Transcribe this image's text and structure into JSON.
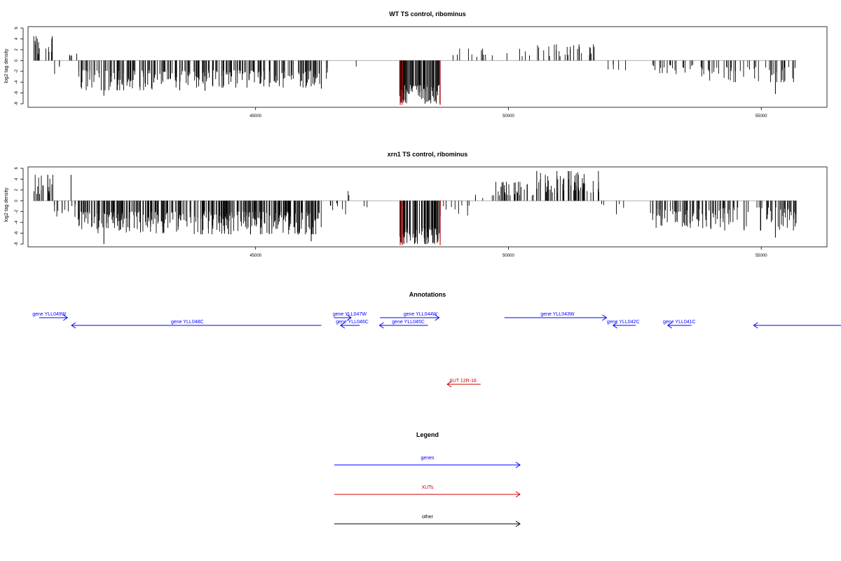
{
  "colors": {
    "genes": "#0000ff",
    "xuts": "#cc0000",
    "other": "#000000",
    "bars": "#000000",
    "highlight": "#cc0000",
    "baseline": "#999999"
  },
  "chart_data": [
    {
      "type": "bar",
      "title": "WT TS control, ribominus",
      "ylabel": "log2 tag density",
      "xlim": [
        40500,
        56300
      ],
      "ylim": [
        -8.5,
        6
      ],
      "yticks": [
        6,
        4,
        2,
        0,
        -2,
        -4,
        -6,
        -8
      ],
      "xticks": [
        45000,
        50000,
        55000
      ],
      "xtick_labels": [
        "45000",
        "50000",
        "55000"
      ],
      "highlight_color": "xuts",
      "segments": [
        {
          "from": 40600,
          "to": 41000,
          "sign": 1,
          "max": 4.5,
          "min": 1.0,
          "density": 12
        },
        {
          "from": 41000,
          "to": 41200,
          "sign": -1,
          "max": 2.5,
          "min": 0.5,
          "density": 5
        },
        {
          "from": 41200,
          "to": 41480,
          "sign": 1,
          "max": 3.5,
          "min": 0.8,
          "density": 6
        },
        {
          "from": 41500,
          "to": 43400,
          "sign": -1,
          "max": 5.5,
          "min": 1.8,
          "density": 16
        },
        {
          "from": 43400,
          "to": 46300,
          "sign": -1,
          "max": 5.0,
          "min": 1.8,
          "density": 16
        },
        {
          "from": 46300,
          "to": 46550,
          "sign": -1,
          "max": 4.5,
          "min": 1.0,
          "density": 4
        },
        {
          "from": 46950,
          "to": 46990,
          "sign": -1,
          "max": 1.5,
          "min": 1.0,
          "density": 1
        },
        {
          "from": 47850,
          "to": 48650,
          "sign": -1,
          "max": 8.0,
          "min": 4.5,
          "density": 30
        },
        {
          "from": 48650,
          "to": 49000,
          "sign": 1,
          "max": 2.0,
          "min": 1.0,
          "density": 2
        },
        {
          "from": 49000,
          "to": 50500,
          "sign": 1,
          "max": 2.2,
          "min": 0.6,
          "density": 3
        },
        {
          "from": 50500,
          "to": 51800,
          "sign": 1,
          "max": 3.0,
          "min": 0.8,
          "density": 6
        },
        {
          "from": 51900,
          "to": 52400,
          "sign": -1,
          "max": 1.8,
          "min": 0.8,
          "density": 3
        },
        {
          "from": 52800,
          "to": 53800,
          "sign": -1,
          "max": 2.5,
          "min": 0.8,
          "density": 6
        },
        {
          "from": 53800,
          "to": 55700,
          "sign": -1,
          "max": 4.0,
          "min": 1.2,
          "density": 8
        }
      ],
      "spikes": [
        {
          "x": 42000,
          "y": -6.5
        },
        {
          "x": 43500,
          "y": -5.5
        },
        {
          "x": 44000,
          "y": -5.6
        },
        {
          "x": 46300,
          "y": -5.2
        },
        {
          "x": 47860,
          "y": -8.2
        },
        {
          "x": 48650,
          "y": -8.2
        },
        {
          "x": 55280,
          "y": -6.2
        }
      ],
      "highlights": [
        47860,
        47900,
        48650
      ]
    },
    {
      "type": "bar",
      "title": "xrn1 TS control, ribominus",
      "ylabel": "log2 tag density",
      "xlim": [
        40500,
        56300
      ],
      "ylim": [
        -8.5,
        6
      ],
      "yticks": [
        6,
        4,
        2,
        0,
        -2,
        -4,
        -6,
        -8
      ],
      "xticks": [
        45000,
        50000,
        55000
      ],
      "xtick_labels": [
        "45000",
        "50000",
        "55000"
      ],
      "highlight_color": "xuts",
      "segments": [
        {
          "from": 40600,
          "to": 41000,
          "sign": 1,
          "max": 4.8,
          "min": 1.2,
          "density": 14
        },
        {
          "from": 41000,
          "to": 41500,
          "sign": -1,
          "max": 3.5,
          "min": 0.6,
          "density": 8
        },
        {
          "from": 41500,
          "to": 43400,
          "sign": -1,
          "max": 6.0,
          "min": 2.0,
          "density": 22
        },
        {
          "from": 43400,
          "to": 46300,
          "sign": -1,
          "max": 6.2,
          "min": 2.0,
          "density": 22
        },
        {
          "from": 46300,
          "to": 46800,
          "sign": -1,
          "max": 2.5,
          "min": 0.5,
          "density": 4
        },
        {
          "from": 46800,
          "to": 47100,
          "sign": 1,
          "max": 1.8,
          "min": 1.0,
          "density": 2
        },
        {
          "from": 47100,
          "to": 47400,
          "sign": -1,
          "max": 1.2,
          "min": 0.6,
          "density": 2
        },
        {
          "from": 47850,
          "to": 48650,
          "sign": -1,
          "max": 8.0,
          "min": 5.0,
          "density": 34
        },
        {
          "from": 48650,
          "to": 49300,
          "sign": -1,
          "max": 3.5,
          "min": 0.8,
          "density": 5
        },
        {
          "from": 49300,
          "to": 49700,
          "sign": 1,
          "max": 1.5,
          "min": 0.5,
          "density": 3
        },
        {
          "from": 49700,
          "to": 50600,
          "sign": 1,
          "max": 3.5,
          "min": 1.0,
          "density": 12
        },
        {
          "from": 50600,
          "to": 51800,
          "sign": 1,
          "max": 5.5,
          "min": 1.5,
          "density": 16
        },
        {
          "from": 51800,
          "to": 52300,
          "sign": -1,
          "max": 2.5,
          "min": 0.6,
          "density": 3
        },
        {
          "from": 52800,
          "to": 53800,
          "sign": -1,
          "max": 5.0,
          "min": 1.5,
          "density": 14
        },
        {
          "from": 53800,
          "to": 55700,
          "sign": -1,
          "max": 5.5,
          "min": 1.2,
          "density": 12
        }
      ],
      "spikes": [
        {
          "x": 41350,
          "y": 4.8
        },
        {
          "x": 42000,
          "y": -8.0
        },
        {
          "x": 46100,
          "y": -7.5
        },
        {
          "x": 47860,
          "y": -8.2
        },
        {
          "x": 48650,
          "y": -8.2
        },
        {
          "x": 50560,
          "y": 5.5
        },
        {
          "x": 55280,
          "y": -6.8
        }
      ],
      "highlights": [
        47860,
        47900,
        48650
      ]
    }
  ],
  "annotations": {
    "title": "Annotations",
    "xlim": [
      40500,
      56300
    ],
    "features": [
      {
        "label": "gene YLL049W",
        "kind": "genes",
        "start": 40720,
        "end": 41280,
        "strand": "+",
        "row": 0,
        "label_x": 40920
      },
      {
        "label": "gene YLL048C",
        "kind": "genes",
        "start": 41360,
        "end": 46300,
        "strand": "-",
        "row": 1,
        "label_x": 43650
      },
      {
        "label": "gene YLL047W",
        "kind": "genes",
        "start": 46550,
        "end": 46890,
        "strand": "+",
        "row": 0,
        "label_x": 46860
      },
      {
        "label": "gene YLL046C",
        "kind": "genes",
        "start": 46680,
        "end": 47060,
        "strand": "-",
        "row": 1,
        "label_x": 46910
      },
      {
        "label": "gene YLL044W",
        "kind": "genes",
        "start": 47460,
        "end": 48630,
        "strand": "+",
        "row": 0,
        "label_x": 48260
      },
      {
        "label": "gene YLL045C",
        "kind": "genes",
        "start": 47450,
        "end": 48410,
        "strand": "-",
        "row": 1,
        "label_x": 48020
      },
      {
        "label": "gene YLL043W",
        "kind": "genes",
        "start": 49920,
        "end": 51940,
        "strand": "+",
        "row": 0,
        "label_x": 50970
      },
      {
        "label": "gene YLL042C",
        "kind": "genes",
        "start": 52070,
        "end": 52520,
        "strand": "-",
        "row": 1,
        "label_x": 52270
      },
      {
        "label": "gene YLL041C",
        "kind": "genes",
        "start": 53150,
        "end": 53620,
        "strand": "-",
        "row": 1,
        "label_x": 53380
      },
      {
        "label": "",
        "kind": "genes",
        "start": 54850,
        "end": 56600,
        "strand": "-",
        "row": 1,
        "label_x": 55700
      },
      {
        "label": "XUT 12R-16",
        "kind": "xuts",
        "start": 48790,
        "end": 49450,
        "strand": "-",
        "row": 2,
        "label_x": 49100
      }
    ]
  },
  "legend": {
    "title": "Legend",
    "items": [
      {
        "label": "genes",
        "kind": "genes"
      },
      {
        "label": "XUTs",
        "kind": "xuts"
      },
      {
        "label": "other",
        "kind": "other"
      }
    ]
  }
}
